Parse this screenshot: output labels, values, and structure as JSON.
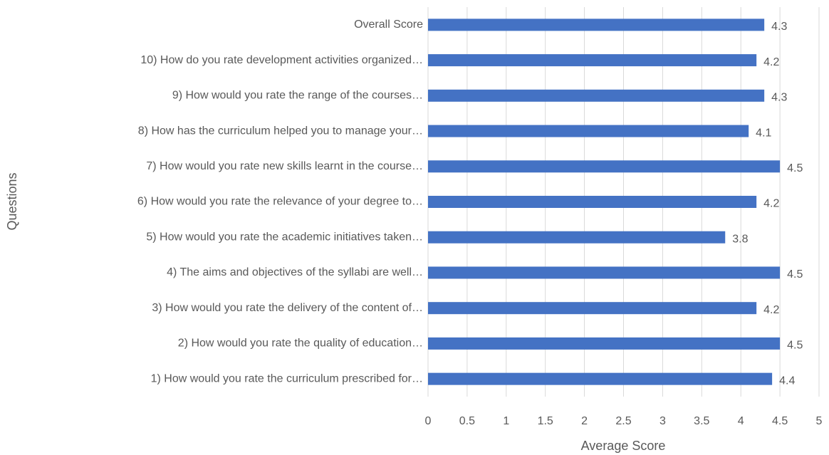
{
  "chart_data": {
    "type": "bar",
    "orientation": "horizontal",
    "categories": [
      "1) How would you rate the curriculum prescribed for…",
      "2) How would you rate the quality of education…",
      "3) How would you rate the delivery of the content of…",
      "4) The aims and objectives of the syllabi are well…",
      "5) How would you rate the academic initiatives taken…",
      "6) How would you rate the relevance of your degree to…",
      "7) How would you rate new skills learnt in the course…",
      "8) How has the curriculum helped you to manage your…",
      "9) How would you rate the range of the courses…",
      "10) How do you rate development activities organized…",
      "Overall Score"
    ],
    "values": [
      4.4,
      4.5,
      4.2,
      4.5,
      3.8,
      4.2,
      4.5,
      4.1,
      4.3,
      4.2,
      4.3
    ],
    "color": "#4472c4",
    "xlabel": "Average Score",
    "ylabel": "Questions",
    "xlim": [
      0,
      5
    ],
    "xticks": [
      0,
      0.5,
      1,
      1.5,
      2,
      2.5,
      3,
      3.5,
      4,
      4.5,
      5
    ],
    "grid": true
  }
}
